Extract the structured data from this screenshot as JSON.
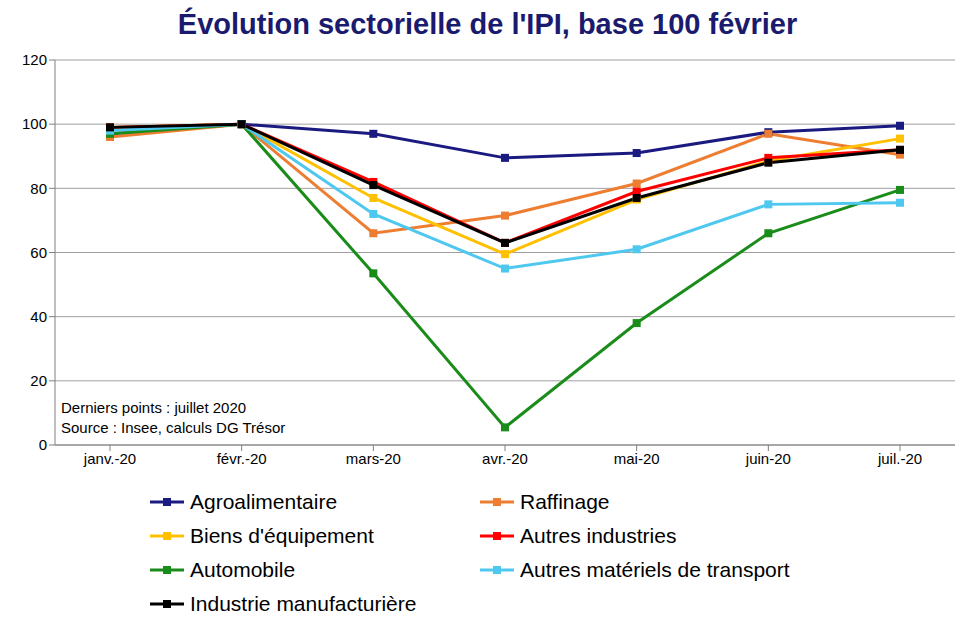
{
  "chart_data": {
    "type": "line",
    "title": "Évolution sectorielle de l'IPI, base 100 février",
    "categories": [
      "janv.-20",
      "févr.-20",
      "mars-20",
      "avr.-20",
      "mai-20",
      "juin-20",
      "juil.-20"
    ],
    "series": [
      {
        "name": "Agroalimentaire",
        "color": "#1a1a80",
        "values": [
          97,
          100,
          97,
          89.5,
          91,
          97.5,
          99.5
        ]
      },
      {
        "name": "Raffinage",
        "color": "#ed7d31",
        "values": [
          96,
          100,
          66,
          71.5,
          81.5,
          97,
          90.5
        ]
      },
      {
        "name": "Biens d'équipement",
        "color": "#ffc000",
        "values": [
          99,
          100,
          77,
          59.5,
          76.5,
          88.5,
          95.5
        ]
      },
      {
        "name": "Autres industries",
        "color": "#ff0000",
        "values": [
          99,
          100,
          82,
          63,
          79,
          89.5,
          92
        ]
      },
      {
        "name": "Automobile",
        "color": "#1a8c1a",
        "values": [
          97,
          100,
          53.5,
          5.5,
          38,
          66,
          79.5
        ]
      },
      {
        "name": "Autres matériels de transport",
        "color": "#4fc8f0",
        "values": [
          98,
          100,
          72,
          55,
          61,
          75,
          75.5
        ]
      },
      {
        "name": "Industrie manufacturière",
        "color": "#000000",
        "values": [
          99,
          100,
          81,
          63,
          77,
          88,
          92
        ]
      }
    ],
    "ylim": [
      0,
      120
    ],
    "yticks": [
      0,
      20,
      40,
      60,
      80,
      100,
      120
    ],
    "grid": true,
    "marker": "square",
    "annotations": [
      "Derniers points : juillet 2020",
      "Source : Insee, calculs DG Trésor"
    ]
  }
}
